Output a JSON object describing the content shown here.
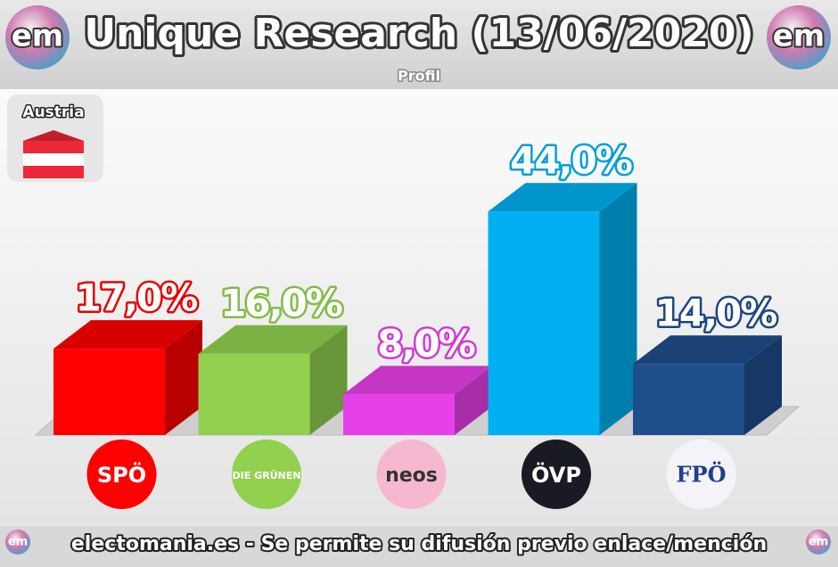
{
  "chart_data": {
    "type": "bar3d",
    "title": "Unique Research (13/06/2020)",
    "subtitle": "Profil",
    "categories": [
      "SPÖ",
      "DIE GRÜNEN",
      "neos",
      "ÖVP",
      "FPÖ"
    ],
    "values": [
      17,
      16,
      8,
      44,
      14
    ],
    "value_labels": [
      "17,0%",
      "16,0%",
      "8,0%",
      "44,0%",
      "14,0%"
    ],
    "colors": [
      "#ff0000",
      "#92d050",
      "#e840e8",
      "#00b0f0",
      "#1f4e8c"
    ]
  },
  "badge": "Austria",
  "logo_text": "em",
  "footer": "electomania.es - Se permite su difusión previo enlace/mención"
}
